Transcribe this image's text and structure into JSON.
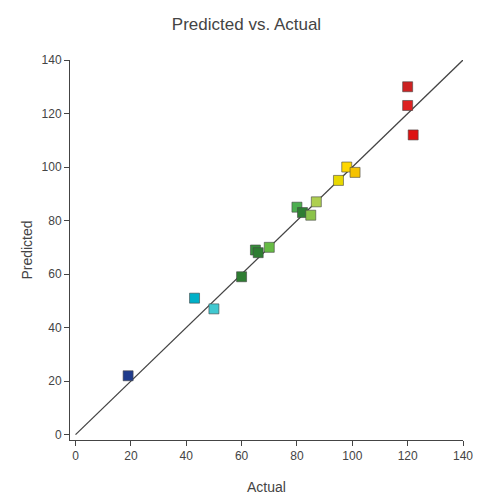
{
  "chart_data": {
    "type": "scatter",
    "title": "Predicted vs. Actual",
    "xlabel": "Actual",
    "ylabel": "Predicted",
    "xlim": [
      -2,
      140
    ],
    "ylim": [
      -2,
      140
    ],
    "xticks": [
      0,
      20,
      40,
      60,
      80,
      100,
      120,
      140
    ],
    "yticks": [
      0,
      20,
      40,
      60,
      80,
      100,
      120,
      140
    ],
    "grid": false,
    "series": [
      {
        "type": "line",
        "color": "#444444",
        "line_style": "solid",
        "x": [
          0,
          140
        ],
        "values": [
          0,
          140
        ]
      },
      {
        "type": "scatter",
        "marker": "square",
        "x": [
          19,
          43,
          50,
          60,
          65,
          66,
          70,
          80,
          82,
          85,
          87,
          95,
          98,
          101,
          120,
          120,
          122
        ],
        "values": [
          22,
          51,
          47,
          59,
          69,
          68,
          70,
          85,
          83,
          82,
          87,
          95,
          100,
          98,
          123,
          130,
          112
        ],
        "colors": [
          "#1f3b8c",
          "#00b0c8",
          "#40c8d0",
          "#2e7d32",
          "#388e3c",
          "#2e7d32",
          "#66bb44",
          "#4caf50",
          "#2e7d32",
          "#8bc34a",
          "#aecf50",
          "#e8d800",
          "#ffd700",
          "#f5c200",
          "#dd2222",
          "#cc2222",
          "#dd1111"
        ]
      }
    ]
  }
}
